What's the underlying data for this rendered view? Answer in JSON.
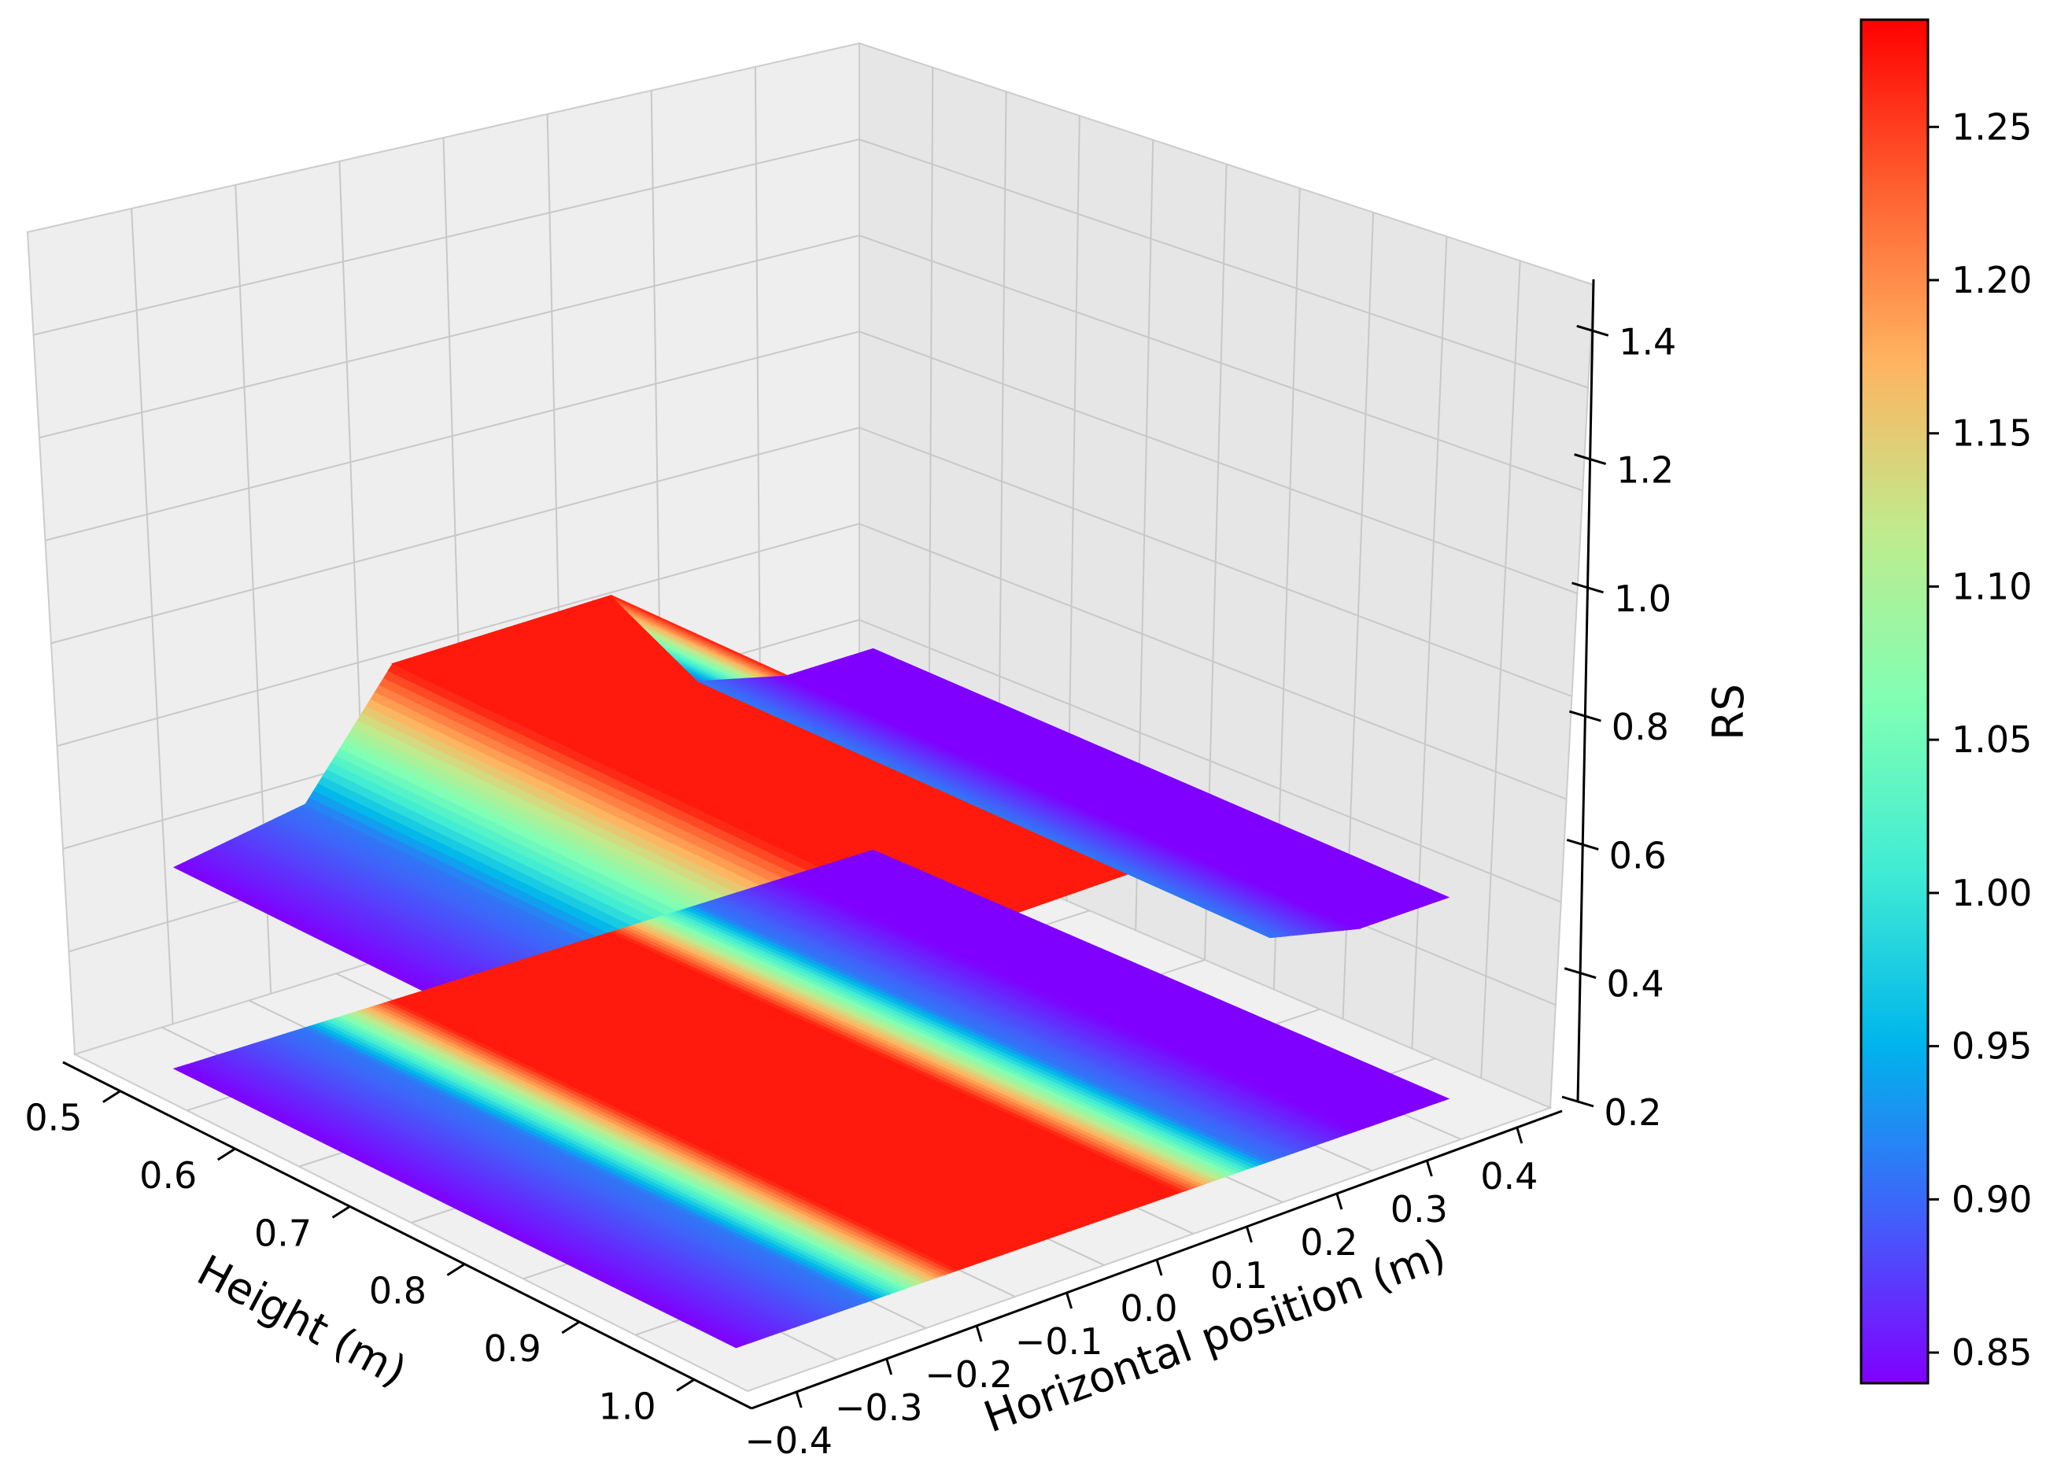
{
  "chart_data": {
    "type": "surface3d",
    "xlabel": "Height (m)",
    "ylabel": "Horizontal position (m)",
    "zlabel": "RS",
    "x_ticks": [
      "0.5",
      "0.6",
      "0.7",
      "0.8",
      "0.9",
      "1.0"
    ],
    "y_ticks": [
      "−0.4",
      "−0.3",
      "−0.2",
      "−0.1",
      "0.0",
      "0.1",
      "0.2",
      "0.3",
      "0.4"
    ],
    "z_ticks": [
      "0.2",
      "0.4",
      "0.6",
      "0.8",
      "1.0",
      "1.2",
      "1.4"
    ],
    "xlim": [
      0.45,
      1.05
    ],
    "ylim": [
      -0.45,
      0.45
    ],
    "zlim": [
      0.2,
      1.48
    ],
    "colorbar": {
      "colormap": "rainbow",
      "range": [
        0.84,
        1.285
      ],
      "ticks": [
        "0.85",
        "0.90",
        "0.95",
        "1.00",
        "1.05",
        "1.10",
        "1.15",
        "1.20",
        "1.25"
      ]
    },
    "contour_offset_z": 0.2,
    "profile_note": "RS is constant along Height; profile varies with Horizontal position only",
    "profile": {
      "y": [
        -0.4,
        -0.25,
        -0.15,
        0.0,
        0.1,
        0.2,
        0.3,
        0.4
      ],
      "rs": [
        0.84,
        0.91,
        1.27,
        1.27,
        1.27,
        0.91,
        0.84,
        0.84
      ]
    },
    "grid": true
  }
}
